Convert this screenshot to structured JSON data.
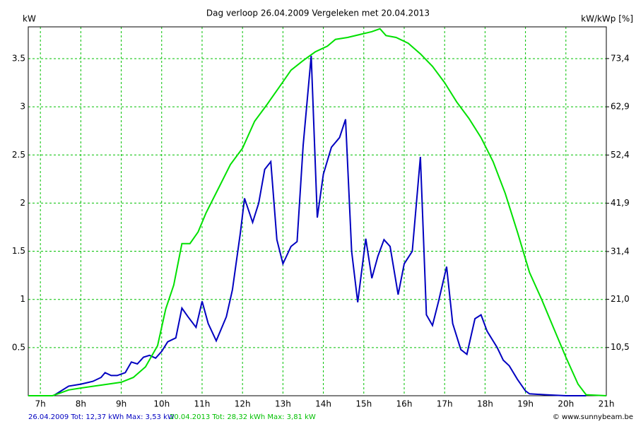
{
  "chart_data": {
    "type": "line",
    "title": "Dag  verloop 26.04.2009   Vergeleken met 20.04.2013",
    "y_label": "kW",
    "y2_label": "kW/kWp [%]",
    "footer_left_1": "26.04.2009 Tot: 12,37 kWh Max: 3,53 kW",
    "footer_left_2": "20.04.2013 Tot: 28,32 kWh Max: 3,81 kW",
    "footer_right": "© www.sunnybeam.be",
    "grid": true,
    "xlim": [
      6.7,
      21
    ],
    "xticks": [
      {
        "value": 7,
        "label": "7h"
      },
      {
        "value": 8,
        "label": "8h"
      },
      {
        "value": 9,
        "label": "9h"
      },
      {
        "value": 10,
        "label": "10h"
      },
      {
        "value": 11,
        "label": "11h"
      },
      {
        "value": 12,
        "label": "12h"
      },
      {
        "value": 13,
        "label": "13h"
      },
      {
        "value": 14,
        "label": "14h"
      },
      {
        "value": 15,
        "label": "15h"
      },
      {
        "value": 16,
        "label": "16h"
      },
      {
        "value": 17,
        "label": "17h"
      },
      {
        "value": 18,
        "label": "18h"
      },
      {
        "value": 19,
        "label": "19h"
      },
      {
        "value": 20,
        "label": "20h"
      },
      {
        "value": 21,
        "label": "21h"
      }
    ],
    "ylim": [
      0,
      3.83
    ],
    "yticks": [
      0.5,
      1,
      1.5,
      2,
      2.5,
      3,
      3.5
    ],
    "y2lim": [
      0,
      80.3
    ],
    "y2ticks": [
      {
        "value": 10.5,
        "label": "10,5"
      },
      {
        "value": 21.0,
        "label": "21,0"
      },
      {
        "value": 31.4,
        "label": "31,4"
      },
      {
        "value": 41.9,
        "label": "41,9"
      },
      {
        "value": 52.4,
        "label": "52,4"
      },
      {
        "value": 62.9,
        "label": "62,9"
      },
      {
        "value": 73.4,
        "label": "73,4"
      }
    ],
    "series": [
      {
        "name": "26.04.2009",
        "color": "#0000c0",
        "x": [
          7.32,
          7.7,
          8.0,
          8.3,
          8.5,
          8.6,
          8.75,
          8.9,
          9.1,
          9.25,
          9.4,
          9.55,
          9.7,
          9.85,
          10.0,
          10.15,
          10.35,
          10.5,
          10.65,
          10.85,
          11.0,
          11.15,
          11.35,
          11.6,
          11.75,
          11.95,
          12.05,
          12.25,
          12.4,
          12.55,
          12.7,
          12.85,
          13.0,
          13.2,
          13.35,
          13.5,
          13.7,
          13.85,
          14.0,
          14.2,
          14.4,
          14.55,
          14.7,
          14.85,
          15.05,
          15.2,
          15.35,
          15.5,
          15.65,
          15.85,
          16.0,
          16.2,
          16.4,
          16.55,
          16.7,
          16.85,
          17.05,
          17.2,
          17.4,
          17.55,
          17.75,
          17.9,
          18.05,
          18.3,
          18.45,
          18.6,
          18.8,
          19.0,
          19.1,
          19.5,
          20.0,
          20.5
        ],
        "values": [
          0,
          0.1,
          0.12,
          0.15,
          0.19,
          0.24,
          0.21,
          0.21,
          0.24,
          0.35,
          0.33,
          0.4,
          0.42,
          0.39,
          0.46,
          0.56,
          0.6,
          0.91,
          0.82,
          0.71,
          0.98,
          0.75,
          0.57,
          0.82,
          1.1,
          1.7,
          2.05,
          1.8,
          2.0,
          2.35,
          2.43,
          1.62,
          1.37,
          1.55,
          1.6,
          2.6,
          3.53,
          1.85,
          2.3,
          2.58,
          2.68,
          2.87,
          1.5,
          0.97,
          1.63,
          1.22,
          1.45,
          1.62,
          1.55,
          1.05,
          1.37,
          1.5,
          2.48,
          0.84,
          0.73,
          0.98,
          1.34,
          0.75,
          0.48,
          0.43,
          0.8,
          0.84,
          0.67,
          0.5,
          0.37,
          0.31,
          0.17,
          0.05,
          0.02,
          0.01,
          0,
          0
        ]
      },
      {
        "name": "20.04.2013",
        "color": "#00e000",
        "x": [
          6.7,
          7.3,
          7.5,
          7.7,
          8.0,
          8.5,
          9.0,
          9.3,
          9.6,
          9.9,
          10.1,
          10.3,
          10.5,
          10.7,
          10.9,
          11.1,
          11.4,
          11.7,
          12.0,
          12.3,
          12.6,
          12.9,
          13.2,
          13.5,
          13.8,
          14.1,
          14.3,
          14.6,
          14.9,
          15.2,
          15.4,
          15.55,
          15.8,
          16.1,
          16.4,
          16.7,
          17.0,
          17.3,
          17.6,
          17.9,
          18.2,
          18.5,
          18.8,
          19.1,
          19.4,
          19.7,
          20.0,
          20.3,
          20.5,
          21.0
        ],
        "values": [
          0,
          0,
          0.03,
          0.06,
          0.08,
          0.11,
          0.14,
          0.19,
          0.3,
          0.52,
          0.9,
          1.15,
          1.58,
          1.58,
          1.7,
          1.9,
          2.15,
          2.4,
          2.57,
          2.85,
          3.02,
          3.2,
          3.38,
          3.48,
          3.57,
          3.63,
          3.7,
          3.72,
          3.75,
          3.78,
          3.81,
          3.74,
          3.72,
          3.66,
          3.55,
          3.42,
          3.25,
          3.05,
          2.88,
          2.68,
          2.43,
          2.1,
          1.7,
          1.28,
          1.0,
          0.7,
          0.4,
          0.12,
          0.01,
          0
        ]
      }
    ]
  }
}
